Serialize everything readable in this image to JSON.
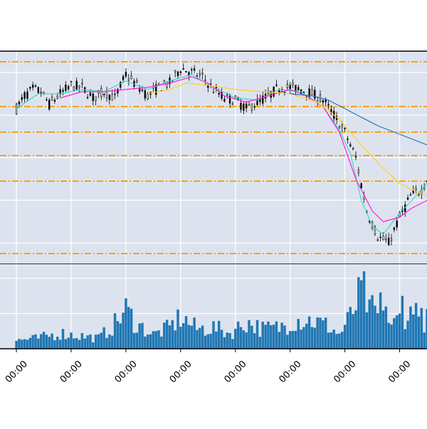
{
  "chart_data": [
    {
      "type": "candlestick",
      "grid": true,
      "background": "#dde3ee",
      "up_color": "#ffffff",
      "down_color": "#000000",
      "x_range": [
        -6,
        150
      ],
      "y_range": [
        0,
        100
      ],
      "support_resistance_levels": [
        95,
        74,
        62,
        51,
        39,
        5
      ],
      "level_color": "#f7a11a",
      "ohlc_keypoints": [
        [
          0,
          73
        ],
        [
          3,
          79
        ],
        [
          6,
          82
        ],
        [
          9,
          81
        ],
        [
          12,
          75
        ],
        [
          16,
          80
        ],
        [
          20,
          84
        ],
        [
          24,
          83
        ],
        [
          28,
          78
        ],
        [
          32,
          81
        ],
        [
          36,
          78
        ],
        [
          40,
          89
        ],
        [
          44,
          84
        ],
        [
          48,
          79
        ],
        [
          52,
          83
        ],
        [
          56,
          85
        ],
        [
          60,
          92
        ],
        [
          64,
          90
        ],
        [
          68,
          88
        ],
        [
          72,
          82
        ],
        [
          76,
          78
        ],
        [
          80,
          77
        ],
        [
          84,
          73
        ],
        [
          88,
          76
        ],
        [
          92,
          79
        ],
        [
          96,
          83
        ],
        [
          100,
          83
        ],
        [
          104,
          82
        ],
        [
          108,
          80
        ],
        [
          112,
          77
        ],
        [
          116,
          70
        ],
        [
          120,
          62
        ],
        [
          124,
          50
        ],
        [
          128,
          25
        ],
        [
          132,
          13
        ],
        [
          136,
          10
        ],
        [
          140,
          22
        ],
        [
          144,
          32
        ],
        [
          148,
          35
        ],
        [
          150,
          40
        ]
      ],
      "moving_averages": [
        {
          "color": "#3ed8c8",
          "points": [
            [
              0,
              73
            ],
            [
              8,
              80
            ],
            [
              16,
              80
            ],
            [
              24,
              82
            ],
            [
              32,
              81
            ],
            [
              40,
              86
            ],
            [
              48,
              82
            ],
            [
              56,
              86
            ],
            [
              64,
              89
            ],
            [
              72,
              83
            ],
            [
              80,
              78
            ],
            [
              88,
              77
            ],
            [
              96,
              82
            ],
            [
              104,
              81
            ],
            [
              112,
              74
            ],
            [
              118,
              63
            ],
            [
              122,
              52
            ],
            [
              126,
              30
            ],
            [
              130,
              18
            ],
            [
              134,
              14
            ],
            [
              140,
              24
            ],
            [
              146,
              32
            ],
            [
              150,
              38
            ]
          ]
        },
        {
          "color": "#ff1ee0",
          "points": [
            [
              16,
              78
            ],
            [
              24,
              81
            ],
            [
              32,
              81
            ],
            [
              40,
              82
            ],
            [
              48,
              83
            ],
            [
              56,
              85
            ],
            [
              64,
              88
            ],
            [
              70,
              85
            ],
            [
              76,
              79
            ],
            [
              84,
              76
            ],
            [
              92,
              79
            ],
            [
              100,
              82
            ],
            [
              106,
              79
            ],
            [
              112,
              74
            ],
            [
              118,
              62
            ],
            [
              124,
              40
            ],
            [
              130,
              25
            ],
            [
              134,
              20
            ],
            [
              140,
              22
            ],
            [
              144,
              26
            ],
            [
              150,
              30
            ]
          ]
        },
        {
          "color": "#ffd21a",
          "points": [
            [
              48,
              80
            ],
            [
              56,
              82
            ],
            [
              62,
              85
            ],
            [
              70,
              84
            ],
            [
              80,
              82
            ],
            [
              90,
              81
            ],
            [
              100,
              80
            ],
            [
              110,
              76
            ],
            [
              118,
              68
            ],
            [
              126,
              56
            ],
            [
              134,
              45
            ],
            [
              140,
              38
            ],
            [
              146,
              34
            ],
            [
              150,
              32
            ]
          ]
        },
        {
          "color": "#1f77b4",
          "points": [
            [
              100,
              80
            ],
            [
              108,
              79
            ],
            [
              114,
              77
            ],
            [
              120,
              73
            ],
            [
              126,
              69
            ],
            [
              132,
              65
            ],
            [
              140,
              61
            ],
            [
              146,
              58
            ],
            [
              150,
              56
            ]
          ]
        }
      ]
    },
    {
      "type": "bar",
      "grid": true,
      "background": "#dde3ee",
      "bar_color": "#1f77b4",
      "x_range": [
        -6,
        150
      ],
      "y_range": [
        0,
        120
      ],
      "volume_keypoints": [
        [
          0,
          12
        ],
        [
          8,
          15
        ],
        [
          16,
          22
        ],
        [
          24,
          18
        ],
        [
          30,
          15
        ],
        [
          36,
          35
        ],
        [
          40,
          55
        ],
        [
          44,
          35
        ],
        [
          50,
          20
        ],
        [
          56,
          30
        ],
        [
          60,
          45
        ],
        [
          66,
          28
        ],
        [
          72,
          30
        ],
        [
          78,
          22
        ],
        [
          84,
          38
        ],
        [
          90,
          28
        ],
        [
          96,
          30
        ],
        [
          102,
          42
        ],
        [
          108,
          40
        ],
        [
          114,
          32
        ],
        [
          118,
          20
        ],
        [
          122,
          45
        ],
        [
          126,
          80
        ],
        [
          130,
          55
        ],
        [
          134,
          40
        ],
        [
          138,
          35
        ],
        [
          142,
          50
        ],
        [
          146,
          45
        ],
        [
          150,
          40
        ]
      ],
      "volume_spikes": [
        [
          127,
          110
        ],
        [
          129,
          70
        ],
        [
          133,
          80
        ],
        [
          135,
          60
        ],
        [
          141,
          75
        ],
        [
          144,
          60
        ],
        [
          146,
          65
        ],
        [
          148,
          58
        ]
      ]
    }
  ],
  "x_axis": {
    "tick_labels": [
      "00:00",
      "00:00",
      "00:00",
      "00:00",
      "00:00",
      "00:00",
      "00:00",
      "00:00"
    ],
    "tick_positions": [
      0,
      20,
      40,
      60,
      80,
      100,
      120,
      140
    ]
  }
}
